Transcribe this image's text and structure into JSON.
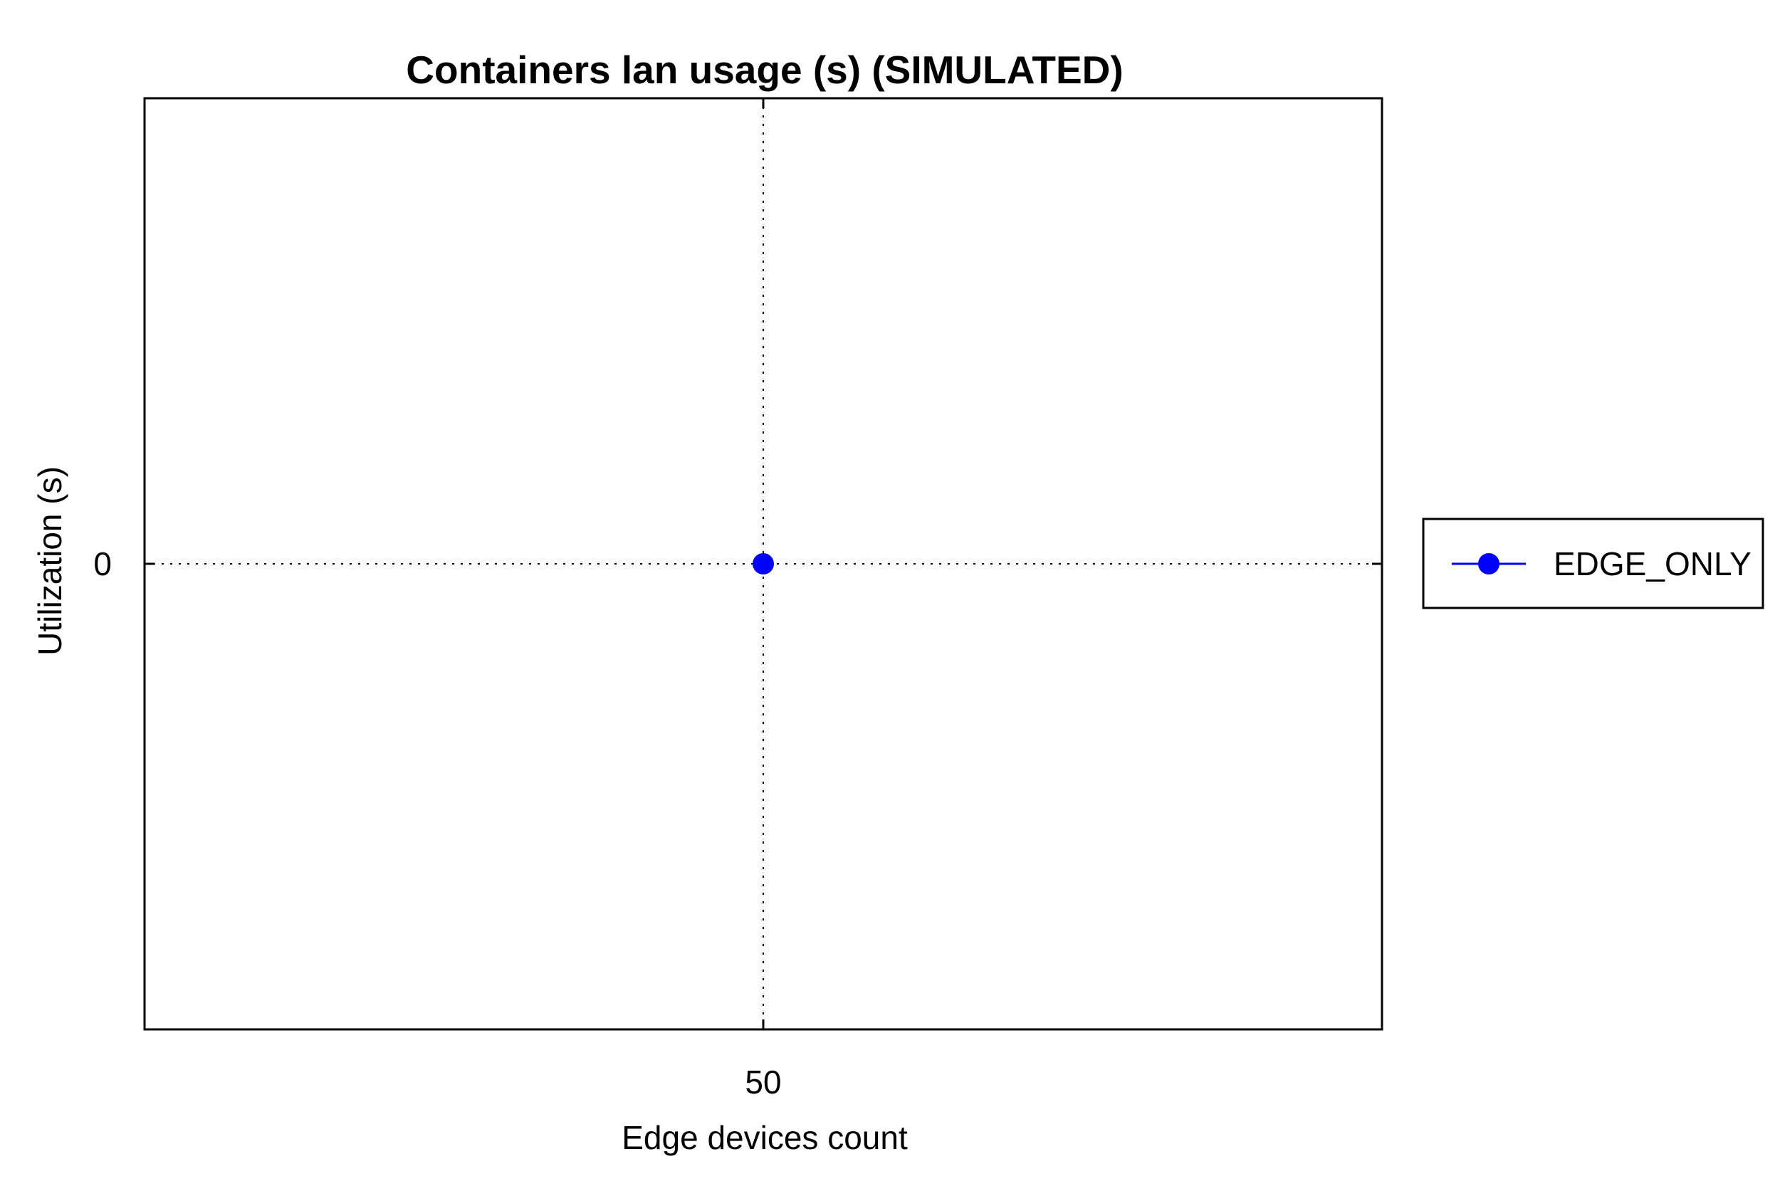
{
  "chart_data": {
    "type": "line",
    "title": "Containers lan usage (s) (SIMULATED)",
    "xlabel": "Edge devices count",
    "ylabel": "Utilization (s)",
    "x": [
      50
    ],
    "x_ticks": [
      "50"
    ],
    "y_ticks": [
      "0"
    ],
    "ylim": [
      -1,
      1
    ],
    "grid": true,
    "legend_position": "outside-right",
    "series": [
      {
        "name": "EDGE_ONLY",
        "color": "#0000ff",
        "marker": "circle",
        "values": [
          0
        ]
      }
    ]
  }
}
